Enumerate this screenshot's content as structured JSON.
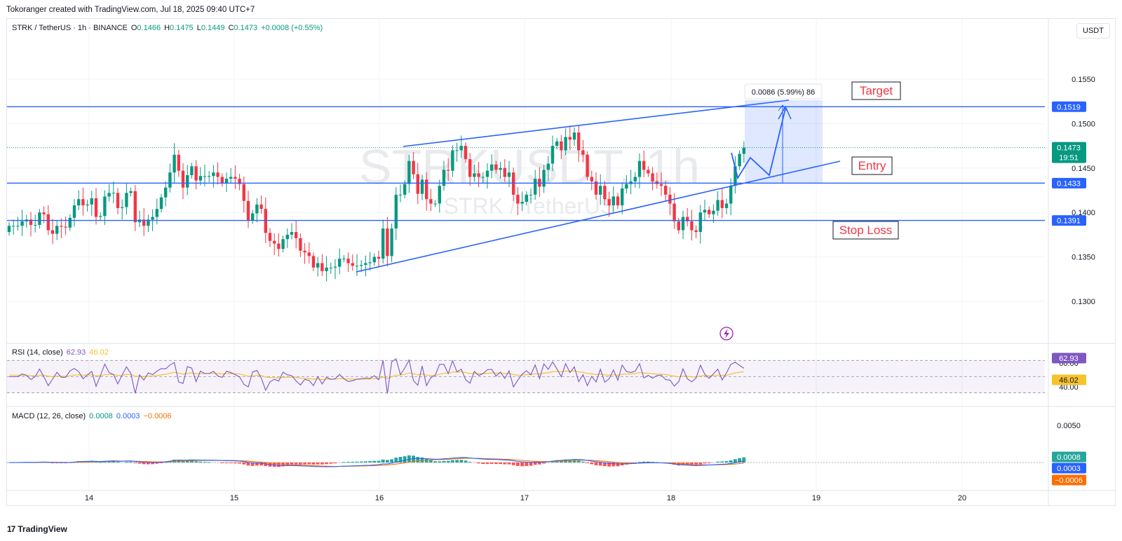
{
  "caption": "Tokoranger created with TradingView.com, Jul 18, 2025 09:40 UTC+7",
  "branding": "TradingView",
  "currency_button": "USDT",
  "watermark": {
    "symbol": "STRKUSDT, 1h",
    "name": "STRK / TetherUS"
  },
  "legend": {
    "symbol": "STRK / TetherUS · 1h · BINANCE",
    "o_label": "O",
    "o": "0.1466",
    "h_label": "H",
    "h": "0.1475",
    "l_label": "L",
    "l": "0.1449",
    "c_label": "C",
    "c": "0.1473",
    "change": "+0.0008 (+0.55%)"
  },
  "rsi_legend": {
    "label": "RSI (14, close)",
    "rsi": "62.93",
    "ma": "46.02"
  },
  "macd_legend": {
    "label": "MACD (12, 26, close)",
    "hist": "0.0008",
    "macd": "0.0003",
    "signal": "−0.0006"
  },
  "annotations": {
    "target": "Target",
    "entry": "Entry",
    "stop": "Stop Loss",
    "measure": "0.0086 (5.99%) 86"
  },
  "price_tags": {
    "target": "0.1519",
    "last": "0.1473",
    "countdown": "19:51",
    "entry": "0.1433",
    "stop": "0.1391"
  },
  "rsi_tags": {
    "rsi": "62.93",
    "ma": "46.02",
    "upper": "60.00",
    "lower": "40.00"
  },
  "macd_tags": {
    "hist": "0.0008",
    "macd": "0.0003",
    "signal": "−0.0006",
    "scale": "0.0050"
  },
  "colors": {
    "up": "#089981",
    "down": "#f23645",
    "line": "#2962ff",
    "rsi": "#7e57c2",
    "rsi_ma": "#f7c22e",
    "macd": "#2962ff",
    "signal": "#ff6d00",
    "annotation": "#f23645"
  },
  "chart_data": {
    "type": "candlestick",
    "symbol": "STRKUSDT",
    "timeframe": "1h",
    "x_ticks": [
      "14",
      "15",
      "16",
      "17",
      "18",
      "19",
      "20"
    ],
    "y_ticks": [
      "0.1550",
      "0.1500",
      "0.1450",
      "0.1400",
      "0.1350",
      "0.1300"
    ],
    "ylim": [
      0.1265,
      0.16
    ],
    "levels": {
      "target": 0.1519,
      "entry": 0.1433,
      "stop_loss": 0.1391,
      "last": 0.1473
    },
    "closes": [
      0.1385,
      0.1385,
      0.1385,
      0.139,
      0.1392,
      0.1386,
      0.1386,
      0.14,
      0.1398,
      0.138,
      0.1376,
      0.1385,
      0.1384,
      0.1383,
      0.1394,
      0.1408,
      0.1415,
      0.1408,
      0.1409,
      0.1416,
      0.1395,
      0.1396,
      0.1418,
      0.1422,
      0.1422,
      0.1405,
      0.1406,
      0.1422,
      0.1424,
      0.1389,
      0.1392,
      0.1385,
      0.1392,
      0.1395,
      0.1404,
      0.1417,
      0.1428,
      0.1445,
      0.1465,
      0.1447,
      0.1428,
      0.1442,
      0.1452,
      0.1436,
      0.1441,
      0.1441,
      0.1441,
      0.1445,
      0.144,
      0.1433,
      0.1438,
      0.144,
      0.1438,
      0.1432,
      0.1413,
      0.1391,
      0.1399,
      0.1409,
      0.1404,
      0.1377,
      0.1368,
      0.1365,
      0.1359,
      0.137,
      0.1375,
      0.1378,
      0.1371,
      0.1357,
      0.1355,
      0.1351,
      0.1338,
      0.1343,
      0.1334,
      0.1338,
      0.1338,
      0.1339,
      0.1348,
      0.1348,
      0.1343,
      0.134,
      0.134,
      0.1341,
      0.1343,
      0.1344,
      0.135,
      0.1348,
      0.1382,
      0.1351,
      0.1382,
      0.142,
      0.142,
      0.1432,
      0.1458,
      0.1443,
      0.1421,
      0.1437,
      0.1415,
      0.141,
      0.141,
      0.143,
      0.1448,
      0.1447,
      0.147,
      0.147,
      0.1475,
      0.146,
      0.144,
      0.1444,
      0.144,
      0.144,
      0.1447,
      0.1454,
      0.1448,
      0.145,
      0.144,
      0.1445,
      0.142,
      0.141,
      0.1412,
      0.142,
      0.142,
      0.1438,
      0.1429,
      0.1448,
      0.1455,
      0.1475,
      0.148,
      0.147,
      0.1485,
      0.1482,
      0.149,
      0.147,
      0.1465,
      0.144,
      0.1435,
      0.142,
      0.143,
      0.1415,
      0.1408,
      0.1418,
      0.1408,
      0.1427,
      0.1432,
      0.1435,
      0.144,
      0.1458,
      0.1448,
      0.1444,
      0.1435,
      0.1432,
      0.143,
      0.142,
      0.141,
      0.139,
      0.138,
      0.1395,
      0.139,
      0.138,
      0.1378,
      0.14,
      0.1403,
      0.1398,
      0.1402,
      0.1414,
      0.1405,
      0.141,
      0.143,
      0.1452,
      0.1466,
      0.1473
    ],
    "opens": null
  }
}
